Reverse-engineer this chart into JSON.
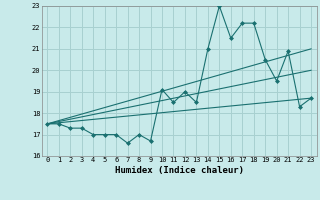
{
  "title": "",
  "xlabel": "Humidex (Indice chaleur)",
  "bg_color": "#c8eaea",
  "grid_color": "#a8d0d0",
  "line_color": "#1a7070",
  "xlim": [
    -0.5,
    23.5
  ],
  "ylim": [
    16,
    23
  ],
  "xticks": [
    0,
    1,
    2,
    3,
    4,
    5,
    6,
    7,
    8,
    9,
    10,
    11,
    12,
    13,
    14,
    15,
    16,
    17,
    18,
    19,
    20,
    21,
    22,
    23
  ],
  "yticks": [
    16,
    17,
    18,
    19,
    20,
    21,
    22,
    23
  ],
  "x_main": [
    0,
    1,
    2,
    3,
    4,
    5,
    6,
    7,
    8,
    9,
    10,
    11,
    12,
    13,
    14,
    15,
    16,
    17,
    18,
    19,
    20,
    21,
    22,
    23
  ],
  "y_main": [
    17.5,
    17.5,
    17.3,
    17.3,
    17.0,
    17.0,
    17.0,
    16.6,
    17.0,
    16.7,
    19.1,
    18.5,
    19.0,
    18.5,
    21.0,
    23.0,
    21.5,
    22.2,
    22.2,
    20.5,
    19.5,
    20.9,
    18.3,
    18.7
  ],
  "trend_lines": [
    {
      "x": [
        0,
        23
      ],
      "y": [
        17.5,
        21.0
      ]
    },
    {
      "x": [
        0,
        23
      ],
      "y": [
        17.5,
        20.0
      ]
    },
    {
      "x": [
        0,
        23
      ],
      "y": [
        17.5,
        18.7
      ]
    }
  ]
}
